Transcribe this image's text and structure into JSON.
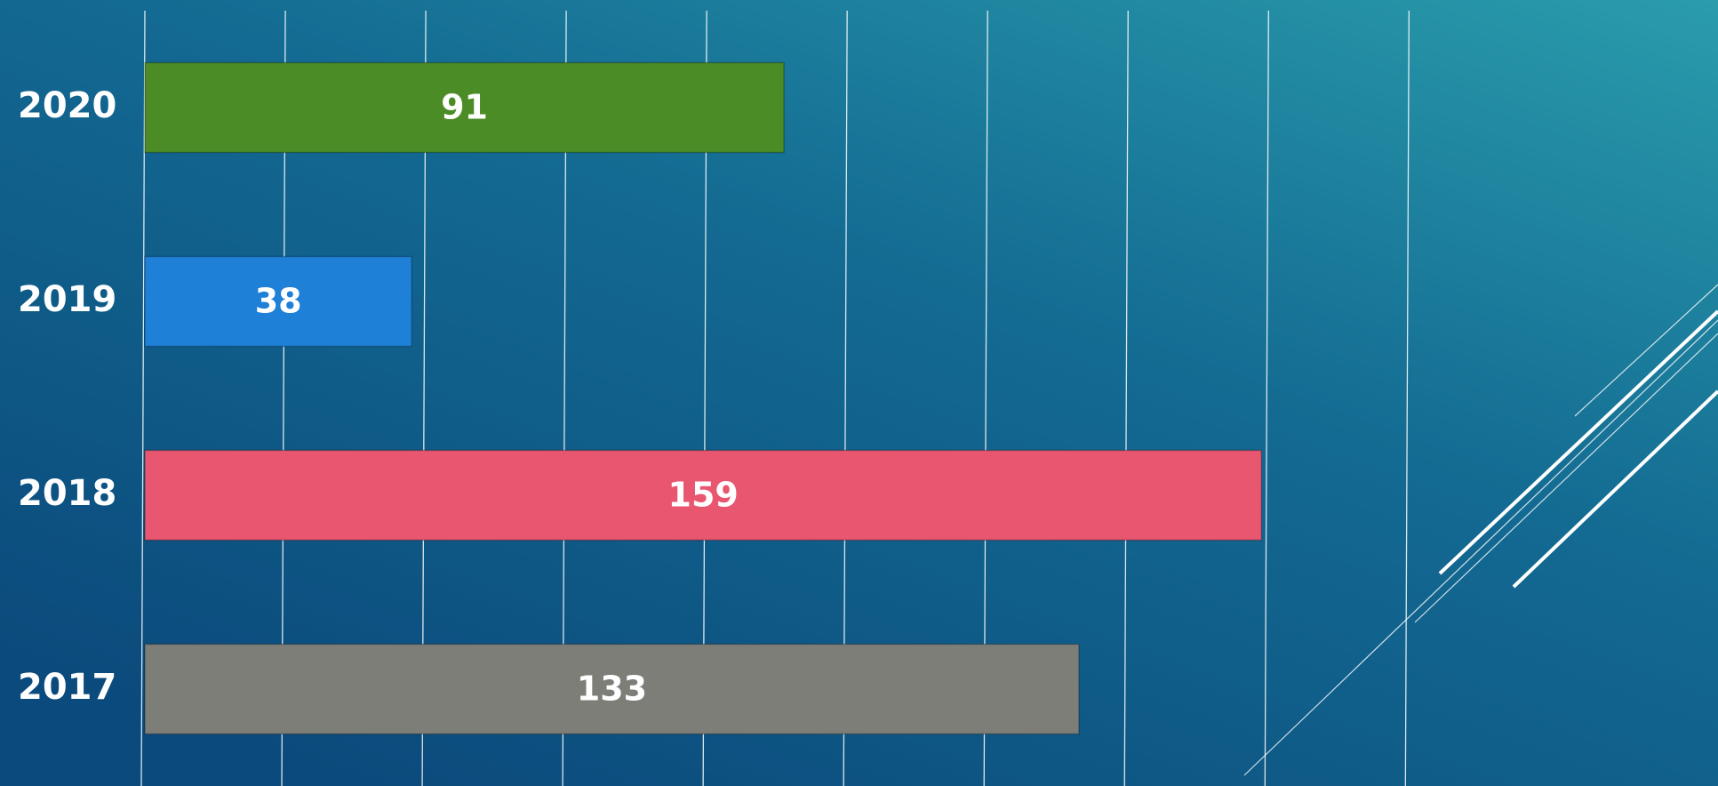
{
  "chart_data": {
    "type": "barh",
    "categories": [
      "2020",
      "2019",
      "2018",
      "2017"
    ],
    "values": [
      91,
      38,
      159,
      133
    ],
    "colors": [
      "#4b8c26",
      "#1f80d8",
      "#e8566f",
      "#7e7e79"
    ],
    "xlim": [
      0,
      224
    ],
    "xticks": [
      0,
      20,
      40,
      60,
      80,
      100,
      120,
      140,
      160,
      180
    ],
    "grid": true
  }
}
